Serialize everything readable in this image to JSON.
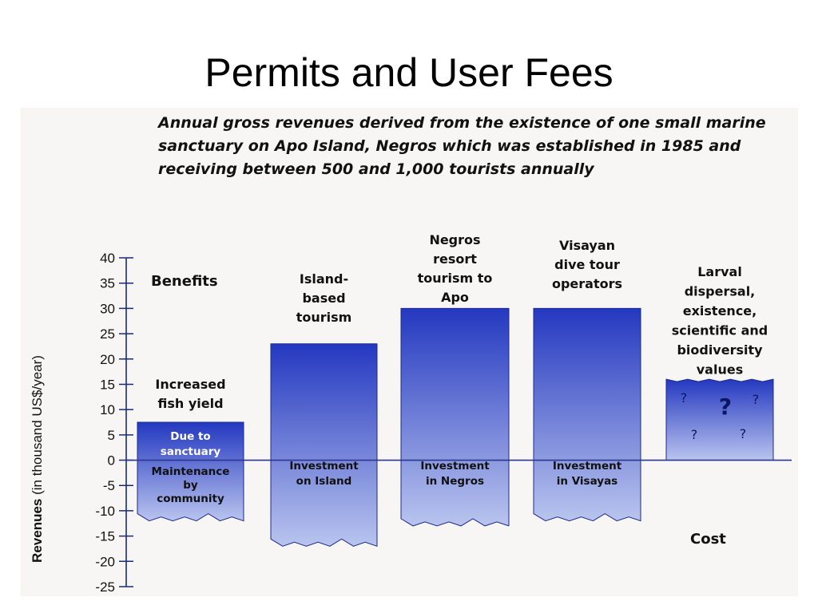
{
  "title": "Permits and User Fees",
  "caption": "Annual gross revenues derived from the existence of one small marine sanctuary on Apo Island, Negros which was established in 1985 and receiving between 500 and 1,000 tourists annually",
  "chart_data": {
    "type": "bar",
    "ylabel_bold": "Revenues",
    "ylabel_rest": " (in thousand US$/year)",
    "ylim": [
      -25,
      40
    ],
    "yticks": [
      40,
      35,
      30,
      25,
      20,
      15,
      10,
      5,
      0,
      -5,
      -10,
      -15,
      -20,
      -25
    ],
    "section_labels": {
      "benefits": "Benefits",
      "cost": "Cost"
    },
    "colors": {
      "bar_top": "#2438c0",
      "bar_bottom": "#b9c4ee",
      "edge": "#1c2a8c",
      "zero_line": "#2a3690"
    },
    "series": [
      {
        "benefit": 7.5,
        "cost": -12,
        "label_above": [
          "Increased",
          "fish yield"
        ],
        "label_in_benefit": [
          "Due to",
          "sanctuary"
        ],
        "label_in_cost": [
          "Maintenance",
          "by",
          "community"
        ]
      },
      {
        "benefit": 23,
        "cost": -17,
        "label_above": [
          "Island-",
          "based",
          "tourism"
        ],
        "label_in_cost": [
          "Investment",
          "on Island"
        ]
      },
      {
        "benefit": 30,
        "cost": -13,
        "label_above": [
          "Negros",
          "resort",
          "tourism to",
          "Apo"
        ],
        "label_in_cost": [
          "Investment",
          "in Negros"
        ]
      },
      {
        "benefit": 30,
        "cost": -12,
        "label_above": [
          "Visayan",
          "dive tour",
          "operators"
        ],
        "label_in_cost": [
          "Investment",
          "in Visayas"
        ]
      },
      {
        "benefit": 16,
        "cost": 0,
        "label_above": [
          "Larval",
          "dispersal,",
          "existence,",
          "scientific and",
          "biodiversity",
          "values"
        ],
        "unknown_marks": [
          "?",
          "?",
          "?",
          "?",
          "?"
        ]
      }
    ]
  }
}
